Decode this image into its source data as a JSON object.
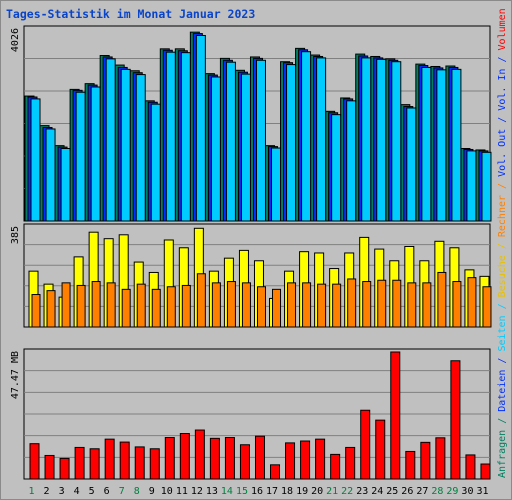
{
  "chart_data": {
    "type": "bar",
    "title": "Tages-Statistik im Monat Januar 2023",
    "days": [
      "1",
      "2",
      "3",
      "4",
      "5",
      "6",
      "7",
      "8",
      "9",
      "10",
      "11",
      "12",
      "13",
      "14",
      "15",
      "16",
      "17",
      "18",
      "19",
      "20",
      "21",
      "22",
      "23",
      "24",
      "25",
      "26",
      "27",
      "28",
      "29",
      "30",
      "31"
    ],
    "weekend_days": [
      "1",
      "7",
      "8",
      "14",
      "15",
      "21",
      "22",
      "28",
      "29"
    ],
    "panels": [
      {
        "name": "Anfragen/Dateien/Seiten",
        "max_label": "4026",
        "ylim": [
          0,
          4026
        ],
        "series": [
          {
            "name": "Anfragen",
            "color": "#008060",
            "values": [
              2620,
              2000,
              1580,
              2760,
              2880,
              3470,
              3270,
              3150,
              2520,
              3610,
              3610,
              3960,
              3090,
              3410,
              3160,
              3440,
              1580,
              3340,
              3620,
              3480,
              2300,
              2580,
              3500,
              3450,
              3400,
              2440,
              3290,
              3240,
              3250,
              1520,
              1490
            ]
          },
          {
            "name": "Dateien",
            "color": "#0030ff",
            "values": [
              2600,
              1960,
              1550,
              2740,
              2850,
              3440,
              3220,
              3110,
              2490,
              3580,
              3570,
              3930,
              3060,
              3370,
              3120,
              3410,
              1560,
              3320,
              3590,
              3450,
              2270,
              2560,
              3460,
              3420,
              3370,
              2400,
              3260,
              3210,
              3220,
              1500,
              1470
            ]
          },
          {
            "name": "Seiten",
            "color": "#00ccff",
            "values": [
              2560,
              1930,
              1520,
              2700,
              2810,
              3400,
              3180,
              3070,
              2450,
              3540,
              3530,
              3890,
              3020,
              3330,
              3080,
              3370,
              1530,
              3280,
              3550,
              3420,
              2230,
              2520,
              3420,
              3390,
              3340,
              2370,
              3220,
              3170,
              3180,
              1470,
              1440
            ]
          }
        ]
      },
      {
        "name": "Besuche/Rechner",
        "max_label": "385",
        "ylim": [
          0,
          385
        ],
        "series": [
          {
            "name": "Besuche",
            "color": "#ffff00",
            "values": [
              215,
              165,
              115,
              270,
              365,
              340,
              355,
              250,
              210,
              335,
              305,
              380,
              215,
              265,
              295,
              255,
              110,
              215,
              290,
              285,
              225,
              285,
              345,
              300,
              255,
              310,
              255,
              330,
              305,
              220,
              195
            ]
          },
          {
            "name": "Rechner",
            "color": "#ff8000",
            "values": [
              125,
              140,
              170,
              160,
              175,
              170,
              145,
              165,
              145,
              155,
              160,
              205,
              170,
              175,
              170,
              155,
              145,
              170,
              170,
              165,
              165,
              185,
              175,
              180,
              180,
              170,
              170,
              210,
              175,
              190,
              155
            ]
          }
        ]
      },
      {
        "name": "Volumen",
        "max_label": "47.47 MB",
        "ylim": [
          0,
          47.47
        ],
        "series": [
          {
            "name": "Volumen",
            "color": "#ff0000",
            "values": [
              13.2,
              8.8,
              7.7,
              11.8,
              11.3,
              14.9,
              13.8,
              12.0,
              11.3,
              15.5,
              17.0,
              18.3,
              15.2,
              15.5,
              12.8,
              16.0,
              5.3,
              13.5,
              14.2,
              14.9,
              9.2,
              11.8,
              25.7,
              22.0,
              47.5,
              10.3,
              13.7,
              15.4,
              44.2,
              9.0,
              5.6
            ]
          }
        ]
      }
    ],
    "right_legend": [
      {
        "text": "Anfragen",
        "color": "#008060"
      },
      {
        "text": " / ",
        "color": "#008060"
      },
      {
        "text": "Dateien",
        "color": "#0030ff"
      },
      {
        "text": " / ",
        "color": "#0030ff"
      },
      {
        "text": "Seiten",
        "color": "#00ccff"
      },
      {
        "text": " / ",
        "color": "#00ccff"
      },
      {
        "text": "Besuche",
        "color": "#e8c000"
      },
      {
        "text": " / ",
        "color": "#e8c000"
      },
      {
        "text": "Rechner",
        "color": "#ff8000"
      },
      {
        "text": " / ",
        "color": "#ff8000"
      },
      {
        "text": "Vol. Out",
        "color": "#0030ff"
      },
      {
        "text": " / ",
        "color": "#0030ff"
      },
      {
        "text": "Vol. In",
        "color": "#0030ff"
      },
      {
        "text": " / ",
        "color": "#0030ff"
      },
      {
        "text": "Volumen",
        "color": "#ff0000"
      }
    ],
    "colors": {
      "background": "#c0c0c0",
      "grid": "#808080",
      "weekday_label": "#000000",
      "weekend_label": "#008040",
      "title": "#0a44c8"
    }
  }
}
